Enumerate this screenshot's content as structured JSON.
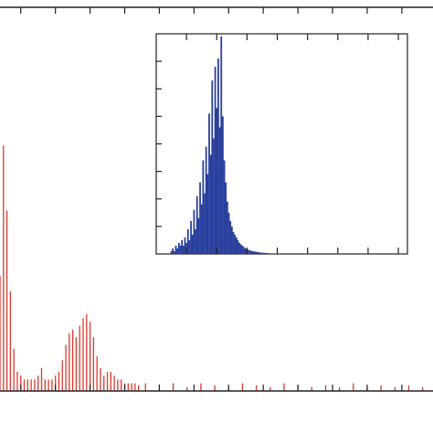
{
  "chart_data": [
    {
      "type": "stem",
      "color": "#d8392f",
      "x": [
        -6,
        -5,
        -4,
        -3,
        -2,
        -1,
        0,
        1,
        2,
        3,
        4,
        5,
        6,
        7,
        8,
        9,
        10,
        11,
        12,
        13,
        14,
        15,
        16,
        17,
        18,
        19,
        20,
        21,
        22,
        23,
        24,
        25,
        26,
        27,
        28,
        29,
        30,
        31,
        32,
        33,
        34,
        36,
        40,
        44,
        48,
        52,
        56,
        60,
        64,
        68,
        72,
        76,
        80,
        84,
        88,
        92,
        96,
        100,
        104,
        108,
        112,
        116
      ],
      "values": [
        30,
        64,
        47,
        26,
        11,
        5,
        4,
        3,
        3,
        3,
        3,
        4,
        6,
        3,
        3,
        3,
        4,
        5,
        8,
        12,
        15,
        16,
        14,
        17,
        19,
        20,
        18,
        14,
        9,
        6,
        4,
        5,
        5,
        4,
        3,
        3,
        2,
        2,
        2,
        2,
        1.5,
        2,
        1.5,
        2,
        1,
        2,
        1.5,
        1,
        2,
        1.5,
        1,
        2,
        1.5,
        1,
        1.5,
        1,
        2,
        1,
        1.5,
        1,
        1.5,
        1
      ],
      "xlim": [
        -6,
        119
      ],
      "ylim": [
        0,
        100
      ],
      "xticks": [
        0,
        10,
        20,
        30,
        40,
        50,
        60,
        70,
        80,
        90,
        100,
        110
      ]
    },
    {
      "type": "bar",
      "color": "#2a3f9e",
      "x": [
        0.5,
        0.55,
        0.6,
        0.65,
        0.7,
        0.75,
        0.8,
        0.85,
        0.9,
        0.95,
        1.0,
        1.05,
        1.1,
        1.15,
        1.2,
        1.25,
        1.3,
        1.35,
        1.4,
        1.45,
        1.5,
        1.55,
        1.6,
        1.65,
        1.7,
        1.75,
        1.8,
        1.85,
        1.9,
        1.95,
        2.0,
        2.05,
        2.1,
        2.15,
        2.2,
        2.25,
        2.3,
        2.35,
        2.4,
        2.45,
        2.5,
        2.55,
        2.6,
        2.65,
        2.7,
        2.75,
        2.8,
        2.85,
        2.9,
        2.95,
        3.0,
        3.05,
        3.1,
        3.15,
        3.2,
        3.25,
        3.3,
        3.35,
        3.4,
        3.45,
        3.5,
        3.55,
        3.6,
        3.65,
        3.7,
        3.75,
        3.8,
        3.85,
        3.9,
        3.95,
        4.0
      ],
      "values": [
        0.1,
        0.2,
        0.1,
        0.3,
        0.2,
        0.4,
        0.3,
        0.5,
        0.3,
        0.6,
        0.4,
        0.9,
        0.5,
        1.2,
        0.7,
        1.6,
        0.9,
        2.1,
        1.3,
        2.6,
        1.8,
        3.4,
        2.2,
        3.9,
        2.9,
        5.1,
        3.6,
        6.3,
        4.2,
        6.8,
        5.3,
        7.1,
        4.6,
        7.9,
        5.0,
        3.4,
        2.6,
        1.9,
        1.5,
        1.2,
        1.0,
        0.8,
        0.7,
        0.6,
        0.5,
        0.4,
        0.35,
        0.3,
        0.25,
        0.2,
        0.18,
        0.15,
        0.13,
        0.11,
        0.1,
        0.09,
        0.08,
        0.07,
        0.06,
        0.05,
        0.05,
        0.04,
        0.04,
        0.03,
        0.03,
        0.02,
        0.02,
        0.02,
        0.01,
        0.01,
        0.01
      ],
      "xlim": [
        0,
        8.3
      ],
      "ylim": [
        0,
        8
      ],
      "xticks": [
        1,
        2,
        3,
        4,
        5,
        6,
        7,
        8
      ],
      "yticks": [
        1,
        2,
        3,
        4,
        5,
        6,
        7
      ]
    }
  ]
}
